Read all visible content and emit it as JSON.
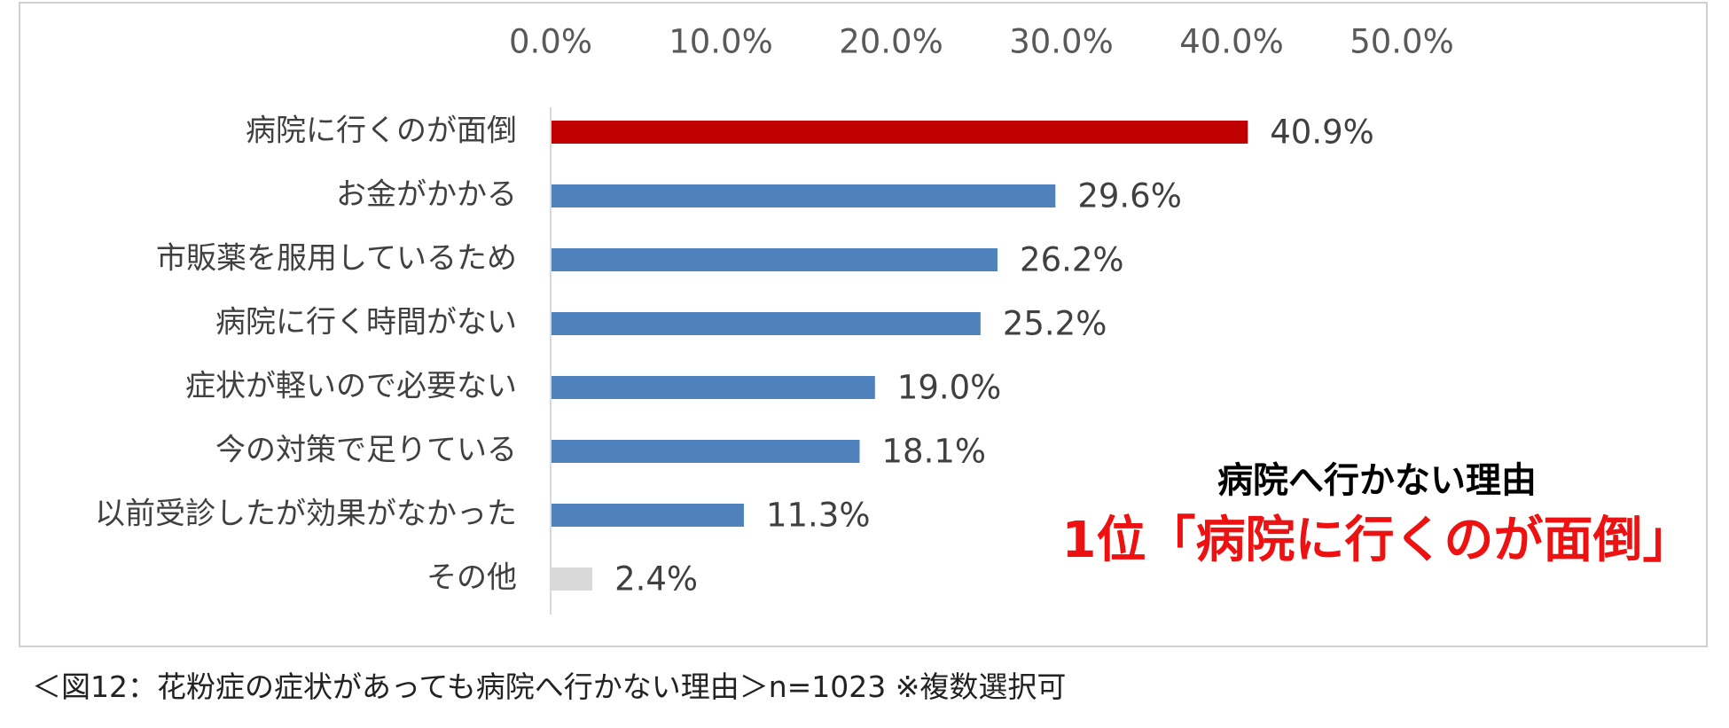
{
  "chart_data": {
    "type": "bar",
    "orientation": "horizontal",
    "categories": [
      "病院に行くのが面倒",
      "お金がかかる",
      "市販薬を服用しているため",
      "病院に行く時間がない",
      "症状が軽いので必要ない",
      "今の対策で足りている",
      "以前受診したが効果がなかった",
      "その他"
    ],
    "values": [
      40.9,
      29.6,
      26.2,
      25.2,
      19.0,
      18.1,
      11.3,
      2.4
    ],
    "value_labels": [
      "40.9%",
      "29.6%",
      "26.2%",
      "25.2%",
      "19.0%",
      "18.1%",
      "11.3%",
      "2.4%"
    ],
    "bar_colors": [
      "#c00000",
      "#4f81bd",
      "#4f81bd",
      "#4f81bd",
      "#4f81bd",
      "#4f81bd",
      "#4f81bd",
      "#d9d9d9"
    ],
    "xlim": [
      0,
      50
    ],
    "tick_values": [
      0,
      10,
      20,
      30,
      40,
      50
    ],
    "tick_labels": [
      "0.0%",
      "10.0%",
      "20.0%",
      "30.0%",
      "40.0%",
      "50.0%"
    ],
    "axis_position": "top",
    "grid": false,
    "legend": "none"
  },
  "callout": {
    "subtitle": "病院へ行かない理由",
    "headline": "1位「病院に行くのが面倒」",
    "headline_color": "#ee1111"
  },
  "caption": "＜図12：花粉症の症状があっても病院へ行かない理由＞n=1023 ※複数選択可"
}
